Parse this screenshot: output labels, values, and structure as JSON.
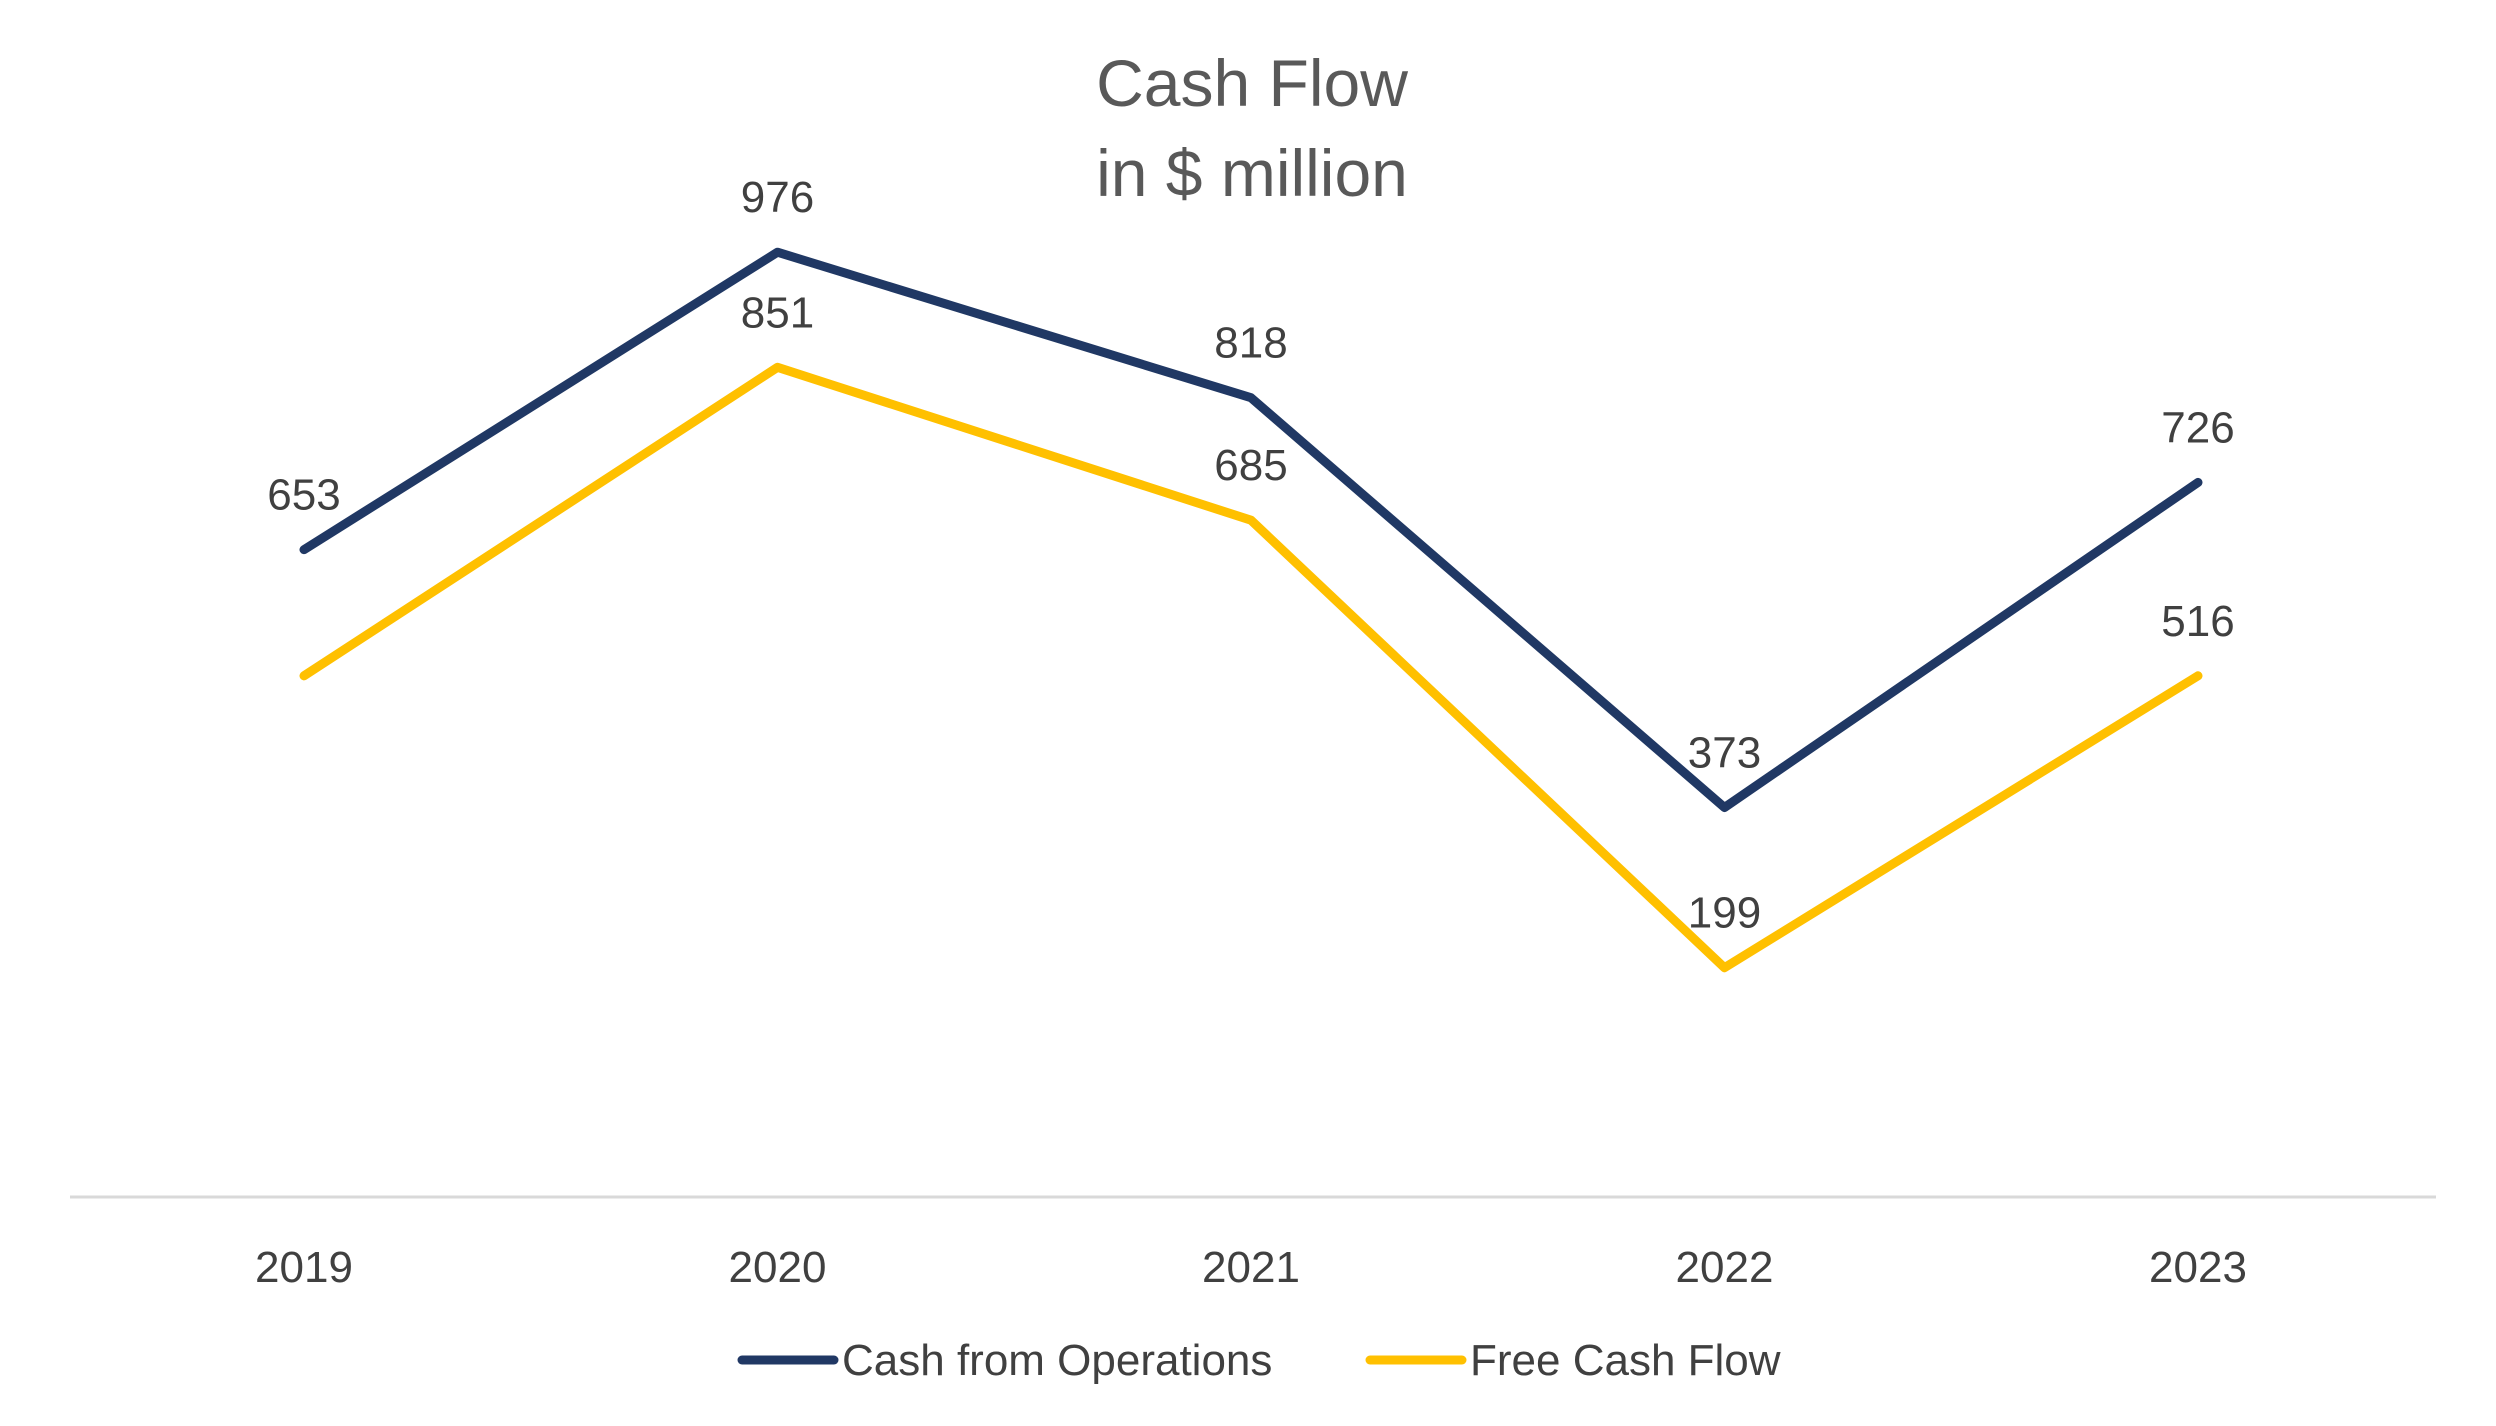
{
  "chart_data": {
    "type": "line",
    "title": "Cash Flow",
    "subtitle": "in $ million",
    "categories": [
      "2019",
      "2020",
      "2021",
      "2022",
      "2023"
    ],
    "series": [
      {
        "name": "Cash from Operations",
        "values": [
          653,
          976,
          818,
          373,
          726
        ],
        "color": "#203864"
      },
      {
        "name": "Free Cash Flow",
        "values": [
          516,
          851,
          685,
          199,
          516
        ],
        "color": "#FFC000"
      }
    ],
    "data_labels": {
      "Cash from Operations": [
        "653",
        "976",
        "818",
        "373",
        "726"
      ],
      "Free Cash Flow": [
        "",
        "851",
        "685",
        "199",
        "516"
      ]
    },
    "ylim": [
      -50,
      1150
    ],
    "grid": false,
    "legend": "bottom"
  }
}
